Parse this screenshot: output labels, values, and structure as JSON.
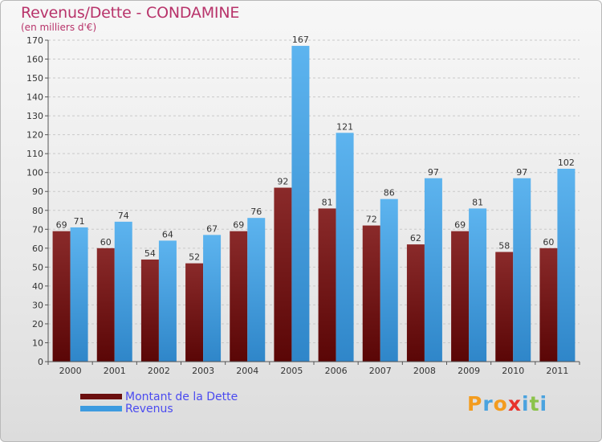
{
  "header": {
    "title": "Revenus/Dette - CONDAMINE",
    "subtitle": "(en milliers d'€)"
  },
  "colors": {
    "dette": "#7a1a1a",
    "revenus": "#4da6e8"
  },
  "legend": {
    "items": [
      {
        "label": "Montant de la Dette",
        "color": "#6b0f0f"
      },
      {
        "label": "Revenus",
        "color": "#3d9be0"
      }
    ]
  },
  "logo": {
    "text": "Proxiti",
    "letters": [
      {
        "ch": "P",
        "color": "#f39c1f"
      },
      {
        "ch": "r",
        "color": "#4aa3df"
      },
      {
        "ch": "o",
        "color": "#f39c1f"
      },
      {
        "ch": "x",
        "color": "#e8332c"
      },
      {
        "ch": "i",
        "color": "#4aa3df"
      },
      {
        "ch": "t",
        "color": "#8bc34a"
      },
      {
        "ch": "i",
        "color": "#4aa3df"
      }
    ]
  },
  "chart_data": {
    "type": "bar",
    "categories": [
      "2000",
      "2001",
      "2002",
      "2003",
      "2004",
      "2005",
      "2006",
      "2007",
      "2008",
      "2009",
      "2010",
      "2011"
    ],
    "series": [
      {
        "name": "Montant de la Dette",
        "values": [
          69,
          60,
          54,
          52,
          69,
          92,
          81,
          72,
          62,
          69,
          58,
          60
        ]
      },
      {
        "name": "Revenus",
        "values": [
          71,
          74,
          64,
          67,
          76,
          167,
          121,
          86,
          97,
          81,
          97,
          102
        ]
      }
    ],
    "title": "Revenus/Dette - CONDAMINE",
    "ylabel": "(en milliers d'€)",
    "ylim": [
      0,
      170
    ],
    "yticks": [
      0,
      10,
      20,
      30,
      40,
      50,
      60,
      70,
      80,
      90,
      100,
      110,
      120,
      130,
      140,
      150,
      160,
      170
    ],
    "grid": true,
    "legend": "bottom-left"
  }
}
